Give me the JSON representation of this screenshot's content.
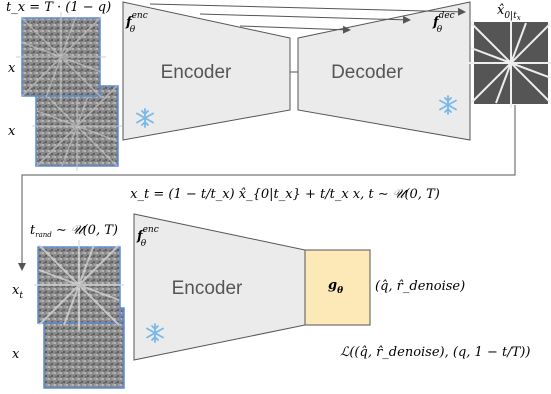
{
  "top": {
    "tx_def": "t_x = T · (1 − q)",
    "x_label_1": "x",
    "x_label_2": "x",
    "encoder": {
      "f": "f",
      "sub": "θ",
      "sup": "enc",
      "label": "Encoder"
    },
    "decoder": {
      "f": "f",
      "sub": "θ",
      "sup": "dec",
      "label": "Decoder"
    },
    "output": {
      "base": "x̂",
      "sub": "0|t",
      "subsub": "x"
    }
  },
  "formula": "x_t = (1 − t/t_x) x̂_{0|t_x} + t/t_x x, t ∼ 𝒰(0, T)",
  "bottom": {
    "t_rand": {
      "base": "t",
      "sub": "rand",
      "rest": " ∼ 𝒰(0, T)"
    },
    "xt_label": {
      "base": "x",
      "sub": "t"
    },
    "x_label": "x",
    "encoder": {
      "f": "f",
      "sub": "θ",
      "sup": "enc",
      "label": "Encoder"
    },
    "head": {
      "base": "g",
      "sub": "θ"
    },
    "output": "(q̂, r̂_denoise)",
    "loss": "ℒ((q̂, r̂_denoise), (q, 1 − t/T))"
  }
}
